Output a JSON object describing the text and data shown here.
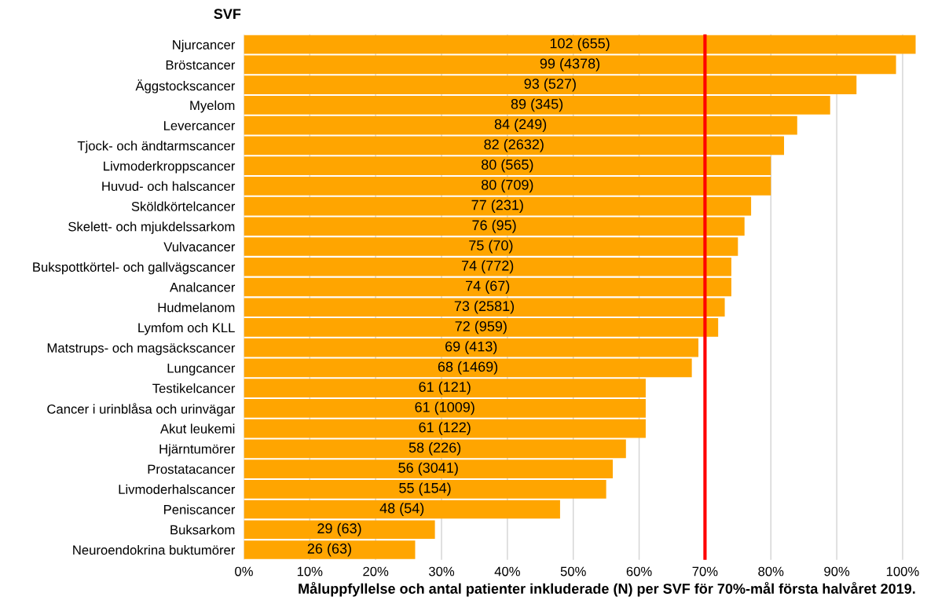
{
  "chart_data": {
    "type": "bar",
    "orientation": "horizontal",
    "ylabel": "SVF",
    "xlabel": "Måluppfyllelse och antal patienter inkluderade (N) per SVF för 70%-mål första halvåret 2019.",
    "categories": [
      "Njurcancer",
      "Bröstcancer",
      "Äggstockscancer",
      "Myelom",
      "Levercancer",
      "Tjock- och ändtarmscancer",
      "Livmoderkroppscancer",
      "Huvud- och halscancer",
      "Sköldkörtelcancer",
      "Skelett- och mjukdelssarkom",
      "Vulvacancer",
      "Bukspottkörtel- och gallvägscancer",
      "Analcancer",
      "Hudmelanom",
      "Lymfom och KLL",
      "Matstrups- och magsäckscancer",
      "Lungcancer",
      "Testikelcancer",
      "Cancer i urinblåsa och urinvägar",
      "Akut leukemi",
      "Hjärntumörer",
      "Prostatacancer",
      "Livmoderhalscancer",
      "Peniscancer",
      "Buksarkom",
      "Neuroendokrina buktumörer"
    ],
    "values": [
      102,
      99,
      93,
      89,
      84,
      82,
      80,
      80,
      77,
      76,
      75,
      74,
      74,
      73,
      72,
      69,
      68,
      61,
      61,
      61,
      58,
      56,
      55,
      48,
      29,
      26
    ],
    "value_labels": [
      "102 (655)",
      "99 (4378)",
      "93 (527)",
      "89 (345)",
      "84 (249)",
      "82 (2632)",
      "80 (565)",
      "80 (709)",
      "77 (231)",
      "76 (95)",
      "75 (70)",
      "74 (772)",
      "74 (67)",
      "73 (2581)",
      "72 (959)",
      "69 (413)",
      "68 (1469)",
      "61 (121)",
      "61 (1009)",
      "61 (122)",
      "58 (226)",
      "56 (3041)",
      "55 (154)",
      "48 (54)",
      "29 (63)",
      "26 (63)"
    ],
    "color": "#ffa500",
    "xlim": [
      0,
      102
    ],
    "xticks": [
      {
        "value": 0,
        "label": "0%"
      },
      {
        "value": 10,
        "label": "10%"
      },
      {
        "value": 20,
        "label": "20%"
      },
      {
        "value": 30,
        "label": "30%"
      },
      {
        "value": 40,
        "label": "40%"
      },
      {
        "value": 50,
        "label": "50%"
      },
      {
        "value": 60,
        "label": "60%"
      },
      {
        "value": 70,
        "label": "70%"
      },
      {
        "value": 80,
        "label": "80%"
      },
      {
        "value": 90,
        "label": "90%"
      },
      {
        "value": 100,
        "label": "100%"
      }
    ],
    "ref_lines": [
      {
        "axis": "x",
        "value": 70,
        "color": "#ff0000"
      }
    ],
    "grid": "x",
    "legend": false
  }
}
